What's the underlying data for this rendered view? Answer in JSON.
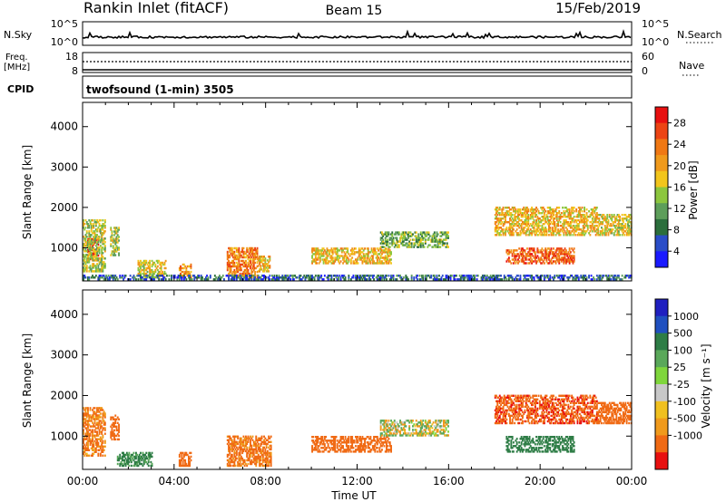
{
  "header": {
    "station": "Rankin Inlet (fitACF)",
    "beam": "Beam 15",
    "date": "15/Feb/2019"
  },
  "nsky_panel": {
    "left_label": "N.Sky",
    "left_ticks": [
      "10^5",
      "10^0"
    ],
    "right_label": "N.Search",
    "right_ticks": [
      "10^5",
      "10^0"
    ]
  },
  "freq_panel": {
    "left_label_1": "Freq.",
    "left_label_2": "[MHz]",
    "left_ticks": [
      "18",
      "8"
    ],
    "right_label": "Nave",
    "right_ticks": [
      "60",
      "0"
    ],
    "cpid_label": "CPID",
    "cpid_value": "twofsound (1-min) 3505"
  },
  "chart_data": [
    {
      "type": "heatmap",
      "title": "",
      "xlabel": "Time UT",
      "ylabel": "Slant Range [km]",
      "x_ticks": [
        "00:00",
        "04:00",
        "08:00",
        "12:00",
        "16:00",
        "20:00",
        "00:00"
      ],
      "xlim_hours": [
        0,
        24
      ],
      "ylim_km": [
        180,
        4600
      ],
      "y_ticks": [
        1000,
        2000,
        3000,
        4000
      ],
      "colorbar": {
        "label": "Power [dB]",
        "range": [
          0,
          30
        ],
        "ticks": [
          "28",
          "24",
          "20",
          "16",
          "12",
          "8",
          "4"
        ],
        "colors": [
          "#1a1aff",
          "#2a4dc8",
          "#2b6e3c",
          "#5d9e5a",
          "#8cc63e",
          "#f2c51c",
          "#f09a1c",
          "#f07814",
          "#ec4414",
          "#e81010"
        ]
      },
      "echo_regions": [
        {
          "time_start": 0.2,
          "time_end": 0.7,
          "range_start": 700,
          "range_end": 1200,
          "value": 26
        },
        {
          "time_start": 0.0,
          "time_end": 1.0,
          "range_start": 400,
          "range_end": 1700,
          "value": 14
        },
        {
          "time_start": 1.2,
          "time_end": 1.6,
          "range_start": 800,
          "range_end": 1500,
          "value": 14
        },
        {
          "time_start": 2.4,
          "time_end": 3.6,
          "range_start": 250,
          "range_end": 700,
          "value": 16
        },
        {
          "time_start": 4.2,
          "time_end": 4.7,
          "range_start": 250,
          "range_end": 600,
          "value": 20
        },
        {
          "time_start": 6.3,
          "time_end": 7.6,
          "range_start": 250,
          "range_end": 1000,
          "value": 22
        },
        {
          "time_start": 7.6,
          "time_end": 8.2,
          "range_start": 400,
          "range_end": 800,
          "value": 18
        },
        {
          "time_start": 10.0,
          "time_end": 13.5,
          "range_start": 600,
          "range_end": 1000,
          "value": 18
        },
        {
          "time_start": 13.0,
          "time_end": 16.0,
          "range_start": 1000,
          "range_end": 1400,
          "value": 12
        },
        {
          "time_start": 18.0,
          "time_end": 22.5,
          "range_start": 1300,
          "range_end": 2000,
          "value": 18
        },
        {
          "time_start": 18.5,
          "time_end": 21.5,
          "range_start": 600,
          "range_end": 1000,
          "value": 24
        },
        {
          "time_start": 22.5,
          "time_end": 24.0,
          "range_start": 1300,
          "range_end": 1800,
          "value": 16
        },
        {
          "time_start": 0.0,
          "time_end": 24.0,
          "range_start": 200,
          "range_end": 320,
          "value": 6
        }
      ]
    },
    {
      "type": "heatmap",
      "title": "",
      "xlabel": "Time UT",
      "ylabel": "Slant Range [km]",
      "x_ticks": [
        "00:00",
        "04:00",
        "08:00",
        "12:00",
        "16:00",
        "20:00",
        "00:00"
      ],
      "xlim_hours": [
        0,
        24
      ],
      "ylim_km": [
        180,
        4600
      ],
      "y_ticks": [
        1000,
        2000,
        3000,
        4000
      ],
      "colorbar": {
        "label": "Velocity [m s⁻¹]",
        "ticks": [
          "1000",
          "500",
          "100",
          "25",
          "-25",
          "-100",
          "-500",
          "-1000"
        ],
        "colors": [
          "#2020c0",
          "#2050c0",
          "#2e7d46",
          "#5aa85a",
          "#7fd63c",
          "#c8c8c8",
          "#f0c020",
          "#f09a1c",
          "#f06a14",
          "#e81010"
        ]
      },
      "echo_regions": [
        {
          "time_start": 0.0,
          "time_end": 1.0,
          "range_start": 500,
          "range_end": 1700,
          "value": -120
        },
        {
          "time_start": 1.2,
          "time_end": 1.6,
          "range_start": 900,
          "range_end": 1500,
          "value": -200
        },
        {
          "time_start": 1.5,
          "time_end": 3.0,
          "range_start": 250,
          "range_end": 600,
          "value": 150
        },
        {
          "time_start": 4.2,
          "time_end": 4.7,
          "range_start": 250,
          "range_end": 600,
          "value": -300
        },
        {
          "time_start": 6.3,
          "time_end": 8.2,
          "range_start": 250,
          "range_end": 1000,
          "value": -150
        },
        {
          "time_start": 10.0,
          "time_end": 13.5,
          "range_start": 600,
          "range_end": 1000,
          "value": -300
        },
        {
          "time_start": 13.0,
          "time_end": 16.0,
          "range_start": 1000,
          "range_end": 1400,
          "value": 0
        },
        {
          "time_start": 18.0,
          "time_end": 22.5,
          "range_start": 1300,
          "range_end": 2000,
          "value": -400
        },
        {
          "time_start": 18.5,
          "time_end": 21.5,
          "range_start": 600,
          "range_end": 1000,
          "value": 200
        },
        {
          "time_start": 22.5,
          "time_end": 24.0,
          "range_start": 1300,
          "range_end": 1800,
          "value": -300
        }
      ]
    }
  ]
}
